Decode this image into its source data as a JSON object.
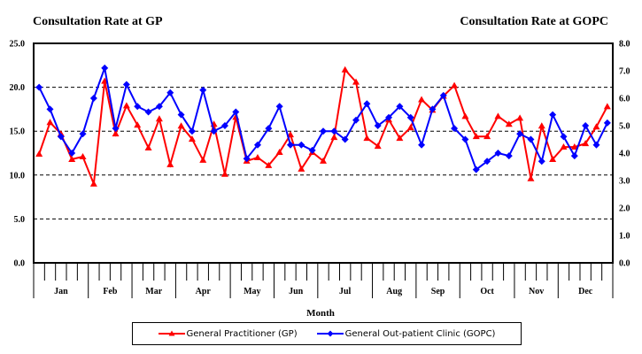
{
  "chart_data": {
    "type": "line",
    "title_left": "Consultation Rate at GP",
    "title_right": "Consultation Rate at GOPC",
    "xlabel": "Month",
    "months": [
      {
        "label": "Jan",
        "weeks": 5
      },
      {
        "label": "Feb",
        "weeks": 4
      },
      {
        "label": "Mar",
        "weeks": 4
      },
      {
        "label": "Apr",
        "weeks": 5
      },
      {
        "label": "May",
        "weeks": 4
      },
      {
        "label": "Jun",
        "weeks": 4
      },
      {
        "label": "Jul",
        "weeks": 5
      },
      {
        "label": "Aug",
        "weeks": 4
      },
      {
        "label": "Sep",
        "weeks": 4
      },
      {
        "label": "Oct",
        "weeks": 5
      },
      {
        "label": "Nov",
        "weeks": 4
      },
      {
        "label": "Dec",
        "weeks": 5
      }
    ],
    "y_left": {
      "ylim": [
        0,
        25
      ],
      "ticks": [
        "0.0",
        "5.0",
        "10.0",
        "15.0",
        "20.0",
        "25.0"
      ],
      "tick_values": [
        0,
        5,
        10,
        15,
        20,
        25
      ]
    },
    "y_right": {
      "ylim": [
        0,
        8
      ],
      "ticks": [
        "0.0",
        "1.0",
        "2.0",
        "3.0",
        "4.0",
        "5.0",
        "6.0",
        "7.0",
        "8.0"
      ],
      "tick_values": [
        0,
        1,
        2,
        3,
        4,
        5,
        6,
        7,
        8
      ]
    },
    "grid": {
      "dashed_horizontal_at_left": [
        5,
        10,
        15,
        20
      ]
    },
    "legend_position": "bottom",
    "series": [
      {
        "name": "General Practitioner (GP)",
        "axis": "left",
        "color": "#ff0000",
        "marker": "triangle",
        "values": [
          12.4,
          16.0,
          14.7,
          11.8,
          12.1,
          9.0,
          20.7,
          14.7,
          17.9,
          15.7,
          13.1,
          16.4,
          11.2,
          15.6,
          14.1,
          11.7,
          15.8,
          10.1,
          16.6,
          11.6,
          12.0,
          11.1,
          12.6,
          14.6,
          10.7,
          12.6,
          11.6,
          14.3,
          22.0,
          20.6,
          14.2,
          13.3,
          16.3,
          14.2,
          15.4,
          18.6,
          17.4,
          19.0,
          20.2,
          16.7,
          14.4,
          14.4,
          16.7,
          15.8,
          16.5,
          9.6,
          15.6,
          11.8,
          13.2,
          13.2,
          13.6,
          15.5,
          17.8
        ]
      },
      {
        "name": "General Out-patient Clinic (GOPC)",
        "axis": "right",
        "color": "#0000ff",
        "marker": "diamond",
        "values": [
          6.4,
          5.6,
          4.6,
          4.0,
          4.7,
          6.0,
          7.1,
          4.9,
          6.5,
          5.7,
          5.5,
          5.7,
          6.2,
          5.4,
          4.8,
          6.3,
          4.8,
          5.0,
          5.5,
          3.8,
          4.3,
          4.9,
          5.7,
          4.3,
          4.3,
          4.1,
          4.8,
          4.8,
          4.5,
          5.2,
          5.8,
          5.0,
          5.3,
          5.7,
          5.3,
          4.3,
          5.6,
          6.1,
          4.9,
          4.5,
          3.4,
          3.7,
          4.0,
          3.9,
          4.7,
          4.5,
          3.7,
          5.4,
          4.6,
          3.9,
          5.0,
          4.3,
          5.1
        ]
      }
    ]
  },
  "legend": {
    "gp_label": "General Practitioner (GP)",
    "gopc_label": "General Out-patient Clinic (GOPC)"
  }
}
